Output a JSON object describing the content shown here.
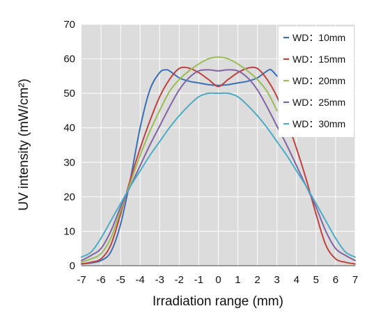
{
  "chart_data": {
    "type": "line",
    "title": "",
    "xlabel": "Irradiation range (mm)",
    "ylabel": "UV intensity (mW/cm²)",
    "xlim": [
      -7,
      7
    ],
    "ylim": [
      0,
      70
    ],
    "x_ticks": [
      -7,
      -6,
      -5,
      -4,
      -3,
      -2,
      -1,
      0,
      1,
      2,
      3,
      4,
      5,
      6,
      7
    ],
    "y_ticks": [
      0,
      10,
      20,
      30,
      40,
      50,
      60,
      70
    ],
    "grid": true,
    "plot_background": "#dcdcdc",
    "grid_color": "#ffffff",
    "legend_position": "top-right",
    "series": [
      {
        "name": "WD：10mm",
        "color": "#3a6fb5",
        "x": [
          -7,
          -6.5,
          -6,
          -5.5,
          -5,
          -4.5,
          -4,
          -3.5,
          -3,
          -2.7,
          -2.5,
          -2,
          -1.5,
          -1,
          -0.5,
          0,
          0.5,
          1,
          1.5,
          2,
          2.5,
          2.7,
          3
        ],
        "y": [
          0.5,
          0.8,
          1.5,
          4,
          12,
          25,
          40,
          51,
          56,
          56.8,
          56.5,
          54.5,
          53.5,
          53,
          52.5,
          52.3,
          52.5,
          53,
          53.5,
          54.5,
          56.5,
          56.8,
          55
        ]
      },
      {
        "name": "WD：15mm",
        "color": "#c0403d",
        "x": [
          -7,
          -6.5,
          -6,
          -5.5,
          -5,
          -4.5,
          -4,
          -3.5,
          -3,
          -2.5,
          -2,
          -1.5,
          -1,
          -0.5,
          0,
          0.5,
          1,
          1.5,
          2,
          2.5,
          3,
          3.5,
          4,
          4.5,
          5,
          5.5,
          6,
          6.5,
          7
        ],
        "y": [
          0.5,
          1,
          2,
          6,
          15,
          25,
          34,
          42,
          49,
          54,
          57.2,
          57.3,
          56,
          54,
          52,
          54,
          56,
          57.3,
          57.2,
          54,
          49,
          42,
          34,
          25,
          15,
          6,
          2,
          1,
          0.5
        ]
      },
      {
        "name": "WD：20mm",
        "color": "#9bbb59",
        "x": [
          -7,
          -6.5,
          -6,
          -5.5,
          -5,
          -4.5,
          -4,
          -3.5,
          -3,
          -2.5,
          -2,
          -1.5,
          -1,
          -0.5,
          0,
          0.5,
          1,
          1.5,
          2,
          2.5,
          3
        ],
        "y": [
          1,
          2,
          3.5,
          8,
          16,
          24,
          32,
          39,
          45,
          50.5,
          54,
          56.5,
          58.5,
          60,
          60.5,
          60,
          58.5,
          56.5,
          54,
          50.5,
          45
        ]
      },
      {
        "name": "WD：25mm",
        "color": "#8064a2",
        "x": [
          -7,
          -6.5,
          -6,
          -5.5,
          -5,
          -4.5,
          -4,
          -3.5,
          -3,
          -2.5,
          -2,
          -1.5,
          -1,
          -0.5,
          0,
          0.5,
          1,
          1.5,
          2,
          2.5,
          3,
          3.5,
          4,
          4.5,
          5,
          5.5,
          6,
          6.5,
          7
        ],
        "y": [
          1.5,
          3,
          5,
          10,
          17,
          23,
          29,
          35,
          40.5,
          46,
          51,
          54.5,
          56.5,
          56.8,
          56.5,
          56.8,
          56.5,
          54.5,
          51,
          46,
          40.5,
          35,
          29,
          23,
          17,
          10,
          5,
          3,
          1.5
        ]
      },
      {
        "name": "WD：30mm",
        "color": "#4bacc6",
        "x": [
          -7,
          -6.5,
          -6,
          -5.5,
          -5,
          -4.5,
          -4,
          -3.5,
          -3,
          -2.5,
          -2,
          -1.5,
          -1,
          -0.5,
          0,
          0.5,
          1,
          1.5,
          2,
          2.5,
          3,
          3.5,
          4,
          4.5,
          5,
          5.5,
          6,
          6.5,
          7
        ],
        "y": [
          2.5,
          4,
          8,
          13,
          18,
          23,
          27.5,
          32,
          36,
          40,
          43.5,
          46.5,
          49,
          50,
          50,
          50,
          49,
          46.5,
          43.5,
          40,
          36,
          32,
          27.5,
          23,
          18,
          13,
          8,
          4,
          2.5
        ]
      }
    ]
  }
}
